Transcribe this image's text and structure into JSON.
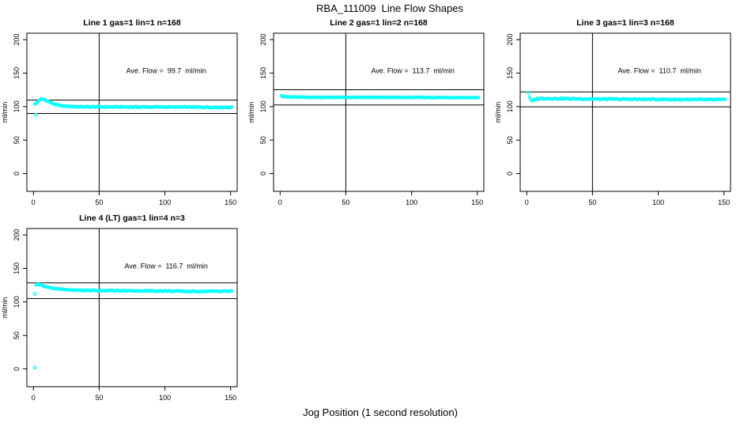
{
  "figure": {
    "title": "RBA_111009  Line Flow Shapes",
    "xlabel": "Jog Position (1 second resolution)",
    "background": "#FFFFFF",
    "axis_color": "#000000"
  },
  "chart_data": [
    {
      "type": "scatter",
      "title": "Line 1 gas=1 lin=1 n=168",
      "annotation": "Ave. Flow =  99.7  ml/min",
      "ave_flow_ml_min": 99.7,
      "n": 168,
      "ylabel": "ml/min",
      "xticks": [
        0,
        50,
        100,
        150
      ],
      "yticks": [
        0,
        50,
        100,
        150,
        200
      ],
      "xlim": [
        -5,
        155
      ],
      "ylim": [
        -26.5,
        209.5
      ],
      "vline_x": 50,
      "hlines": [
        109.7,
        89.7
      ],
      "annotation_xy": [
        101,
        150
      ],
      "marker": "open-circle",
      "marker_color": "#00FFFF",
      "x_points_range": [
        1,
        151
      ],
      "keypoints": [
        [
          1,
          103.5
        ],
        [
          2,
          104.5
        ],
        [
          3,
          106.5
        ],
        [
          4,
          108.5
        ],
        [
          5,
          110
        ],
        [
          6,
          111
        ],
        [
          7,
          111
        ],
        [
          8,
          110.5
        ],
        [
          9,
          110
        ],
        [
          10,
          109
        ],
        [
          12,
          107
        ],
        [
          14,
          105
        ],
        [
          16,
          103.5
        ],
        [
          18,
          102.5
        ],
        [
          20,
          101.5
        ],
        [
          25,
          100.5
        ],
        [
          30,
          100
        ],
        [
          40,
          99.7
        ],
        [
          60,
          99.5
        ],
        [
          80,
          99.4
        ],
        [
          100,
          99.4
        ],
        [
          120,
          99.2
        ],
        [
          135,
          99
        ],
        [
          151,
          98.9
        ]
      ],
      "outliers": [
        [
          2,
          87.5
        ]
      ],
      "noise": 0.7
    },
    {
      "type": "scatter",
      "title": "Line 2 gas=1 lin=2 n=168",
      "annotation": "Ave. Flow =  113.7  ml/min",
      "ave_flow_ml_min": 113.7,
      "n": 168,
      "ylabel": "ml/min",
      "xticks": [
        0,
        50,
        100,
        150
      ],
      "yticks": [
        0,
        50,
        100,
        150,
        200
      ],
      "xlim": [
        -5,
        155
      ],
      "ylim": [
        -26.5,
        209.5
      ],
      "vline_x": 50,
      "hlines": [
        125.1,
        102.3
      ],
      "annotation_xy": [
        101,
        150
      ],
      "marker": "open-circle",
      "marker_color": "#00FFFF",
      "x_points_range": [
        1,
        151
      ],
      "keypoints": [
        [
          1,
          116.5
        ],
        [
          2,
          115.5
        ],
        [
          3,
          115
        ],
        [
          5,
          114.5
        ],
        [
          8,
          114.2
        ],
        [
          15,
          114
        ],
        [
          30,
          113.8
        ],
        [
          60,
          113.7
        ],
        [
          100,
          113.6
        ],
        [
          130,
          113.5
        ],
        [
          151,
          113.4
        ]
      ],
      "outliers": [],
      "noise": 0.45
    },
    {
      "type": "scatter",
      "title": "Line 3 gas=1 lin=3 n=168",
      "annotation": "Ave. Flow =  110.7  ml/min",
      "ave_flow_ml_min": 110.7,
      "n": 168,
      "ylabel": "ml/min",
      "xticks": [
        0,
        50,
        100,
        150
      ],
      "yticks": [
        0,
        50,
        100,
        150,
        200
      ],
      "xlim": [
        -5,
        155
      ],
      "ylim": [
        -26.5,
        209.5
      ],
      "vline_x": 50,
      "hlines": [
        121.8,
        99.6
      ],
      "annotation_xy": [
        101,
        150
      ],
      "marker": "open-circle",
      "marker_color": "#00FFFF",
      "x_points_range": [
        1,
        151
      ],
      "keypoints": [
        [
          1,
          121
        ],
        [
          2,
          115
        ],
        [
          3,
          110
        ],
        [
          4,
          108.5
        ],
        [
          5,
          109
        ],
        [
          6,
          110.5
        ],
        [
          8,
          111.5
        ],
        [
          10,
          112
        ],
        [
          15,
          112
        ],
        [
          25,
          111.8
        ],
        [
          40,
          111.5
        ],
        [
          60,
          111.2
        ],
        [
          80,
          111
        ],
        [
          100,
          110.8
        ],
        [
          120,
          110.5
        ],
        [
          135,
          110.4
        ],
        [
          151,
          110.3
        ]
      ],
      "outliers": [],
      "noise": 0.8
    },
    {
      "type": "scatter",
      "title": "Line 4 (LT) gas=1 lin=4 n=3",
      "annotation": "Ave. Flow =  116.7  ml/min",
      "ave_flow_ml_min": 116.7,
      "n": 3,
      "ylabel": "ml/min",
      "xticks": [
        0,
        50,
        100,
        150
      ],
      "yticks": [
        0,
        50,
        100,
        150,
        200
      ],
      "xlim": [
        -5,
        155
      ],
      "ylim": [
        -26.5,
        209.5
      ],
      "vline_x": 50,
      "hlines": [
        128.4,
        105.0
      ],
      "annotation_xy": [
        101,
        150
      ],
      "marker": "open-circle",
      "marker_color": "#00FFFF",
      "x_points_range": [
        2,
        151
      ],
      "keypoints": [
        [
          2,
          125
        ],
        [
          3,
          127
        ],
        [
          4,
          126.5
        ],
        [
          5,
          126
        ],
        [
          6,
          125
        ],
        [
          8,
          123.5
        ],
        [
          10,
          122.5
        ],
        [
          12,
          121.5
        ],
        [
          15,
          120.5
        ],
        [
          20,
          119
        ],
        [
          25,
          118.2
        ],
        [
          30,
          117.6
        ],
        [
          40,
          117.2
        ],
        [
          50,
          117
        ],
        [
          60,
          116.8
        ],
        [
          80,
          116.5
        ],
        [
          100,
          116.3
        ],
        [
          110,
          116
        ],
        [
          120,
          115.6
        ],
        [
          130,
          115.8
        ],
        [
          140,
          116
        ],
        [
          151,
          116
        ]
      ],
      "outliers": [
        [
          1,
          2
        ],
        [
          1,
          112
        ]
      ],
      "noise": 0.6
    }
  ]
}
